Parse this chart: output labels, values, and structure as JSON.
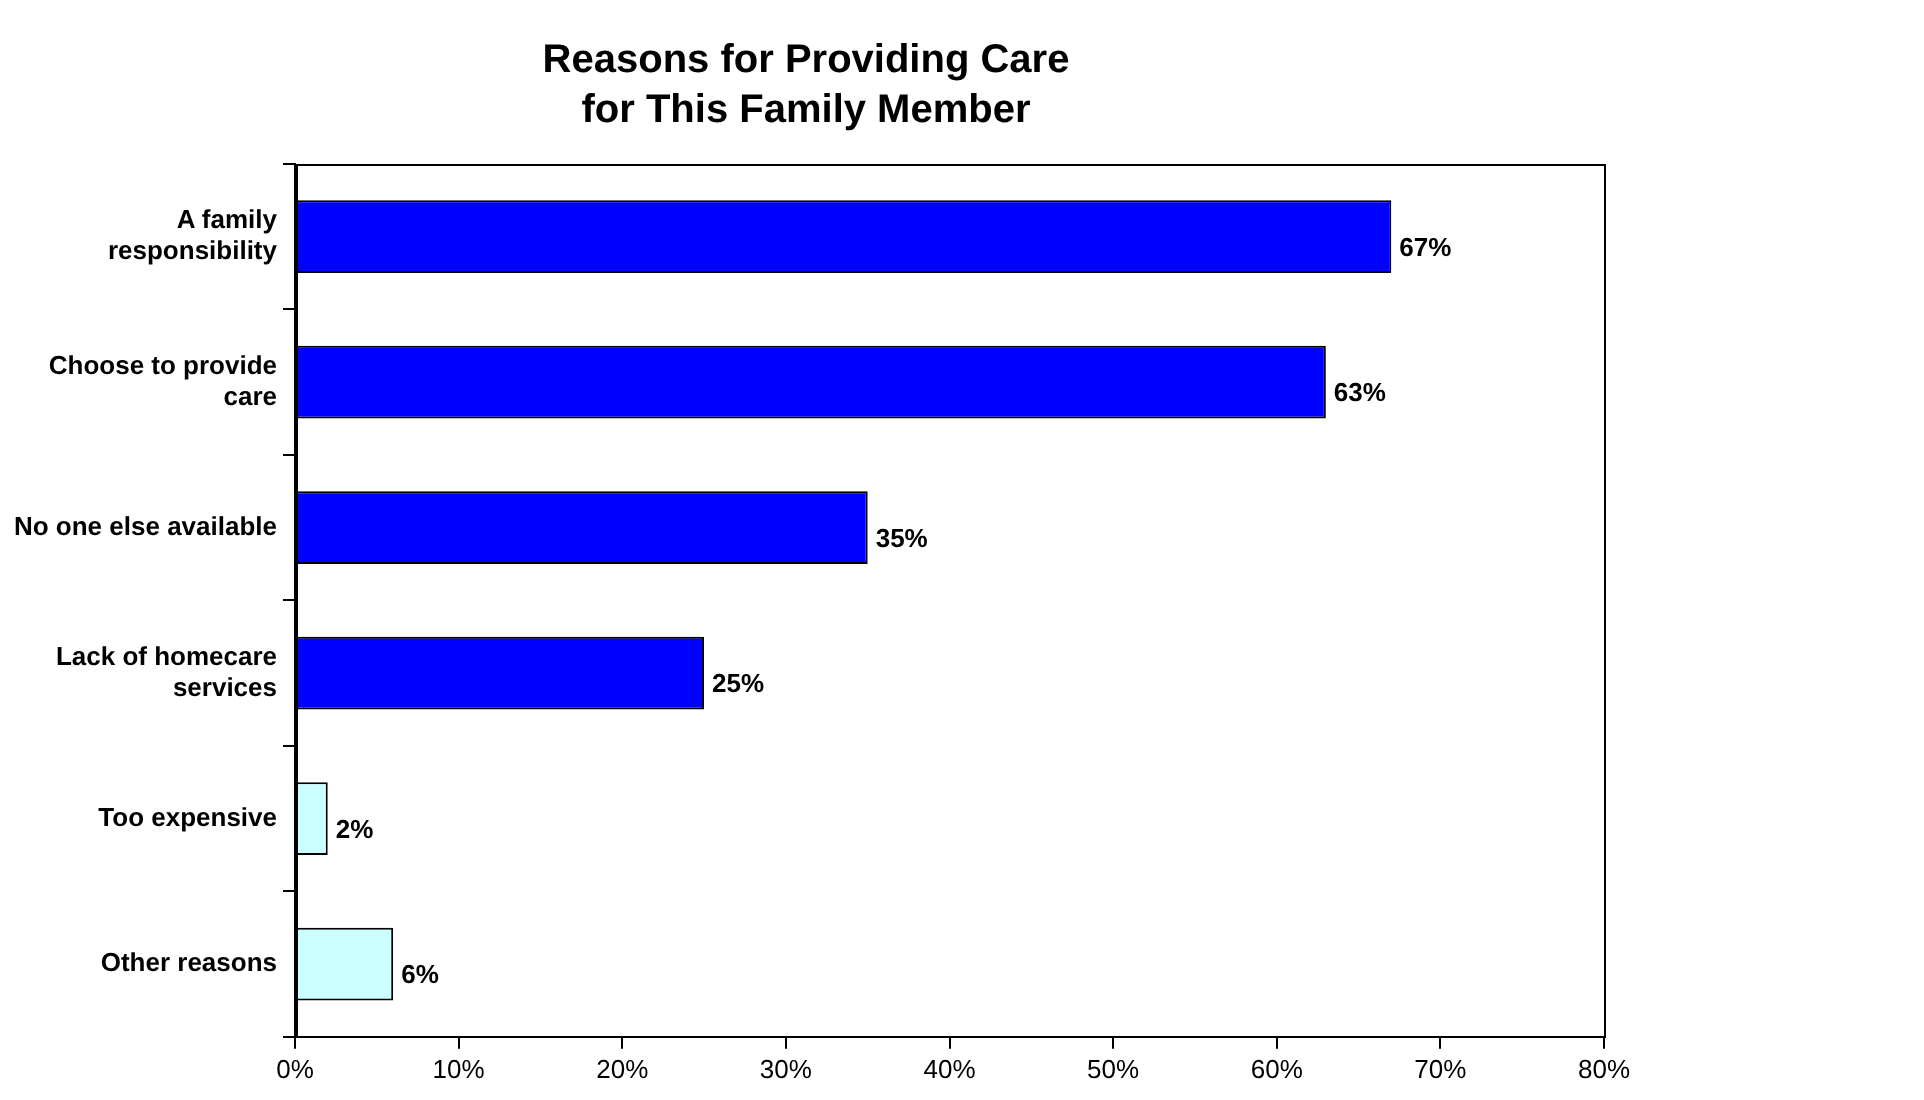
{
  "chart_data": {
    "type": "bar",
    "orientation": "horizontal",
    "title": "Reasons for Providing Care for This Family Member",
    "categories": [
      "A family responsibility",
      "Choose to provide care",
      "No one else available",
      "Lack of homecare services",
      "Too expensive",
      "Other reasons"
    ],
    "values": [
      67,
      63,
      35,
      25,
      2,
      6
    ],
    "colors": [
      "#0000ff",
      "#0000ff",
      "#0000ff",
      "#0000ff",
      "#ccffff",
      "#ccffff"
    ],
    "value_labels": [
      "67%",
      "63%",
      "35%",
      "25%",
      "2%",
      "6%"
    ],
    "xlim": [
      0,
      80
    ],
    "xticks": [
      {
        "value": 0,
        "label": "0%"
      },
      {
        "value": 10,
        "label": "10%"
      },
      {
        "value": 20,
        "label": "20%"
      },
      {
        "value": 30,
        "label": "30%"
      },
      {
        "value": 40,
        "label": "40%"
      },
      {
        "value": 50,
        "label": "50%"
      },
      {
        "value": 60,
        "label": "60%"
      },
      {
        "value": 70,
        "label": "70%"
      },
      {
        "value": 80,
        "label": "80%"
      }
    ],
    "grid": false,
    "legend": false
  }
}
